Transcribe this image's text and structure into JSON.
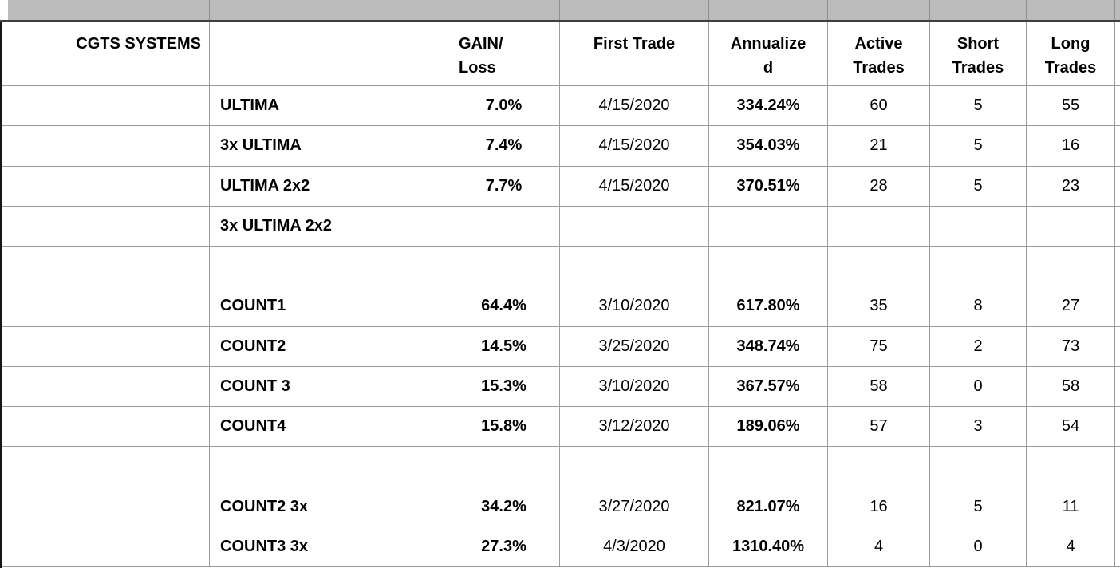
{
  "colors": {
    "grid_line": "#9b9b9b",
    "strip_background": "#bcbcbc",
    "strip_divider": "#8f8f8f",
    "table_top_border": "#3f3f3f",
    "table_left_border": "#161616",
    "text": "#000000",
    "cell_background": "#ffffff"
  },
  "table": {
    "title": "CGTS SYSTEMS",
    "columns": [
      {
        "key": "group",
        "label": "CGTS SYSTEMS",
        "lines": [
          "CGTS SYSTEMS"
        ]
      },
      {
        "key": "name",
        "label": "",
        "lines": [
          ""
        ]
      },
      {
        "key": "gain",
        "label": "GAIN/Loss",
        "lines": [
          "GAIN/",
          "Loss"
        ]
      },
      {
        "key": "first",
        "label": "First Trade",
        "lines": [
          "First Trade"
        ]
      },
      {
        "key": "annual",
        "label": "Annualized",
        "lines": [
          "Annualize",
          "d"
        ]
      },
      {
        "key": "active",
        "label": "Active Trades",
        "lines": [
          "Active",
          "Trades"
        ]
      },
      {
        "key": "short",
        "label": "Short Trades",
        "lines": [
          "Short",
          "Trades"
        ]
      },
      {
        "key": "long",
        "label": "Long Trades",
        "lines": [
          "Long",
          "Trades"
        ]
      }
    ],
    "rows": [
      {
        "group": "",
        "name": "ULTIMA",
        "gain": "7.0%",
        "first": "4/15/2020",
        "annual": "334.24%",
        "active": "60",
        "short": "5",
        "long": "55"
      },
      {
        "group": "",
        "name": "3x ULTIMA",
        "gain": "7.4%",
        "first": "4/15/2020",
        "annual": "354.03%",
        "active": "21",
        "short": "5",
        "long": "16"
      },
      {
        "group": "",
        "name": "ULTIMA 2x2",
        "gain": "7.7%",
        "first": "4/15/2020",
        "annual": "370.51%",
        "active": "28",
        "short": "5",
        "long": "23"
      },
      {
        "group": "",
        "name": "3x ULTIMA 2x2",
        "gain": "",
        "first": "",
        "annual": "",
        "active": "",
        "short": "",
        "long": ""
      },
      {
        "group": "",
        "name": "",
        "gain": "",
        "first": "",
        "annual": "",
        "active": "",
        "short": "",
        "long": ""
      },
      {
        "group": "",
        "name": "COUNT1",
        "gain": "64.4%",
        "first": "3/10/2020",
        "annual": "617.80%",
        "active": "35",
        "short": "8",
        "long": "27"
      },
      {
        "group": "",
        "name": "COUNT2",
        "gain": "14.5%",
        "first": "3/25/2020",
        "annual": "348.74%",
        "active": "75",
        "short": "2",
        "long": "73"
      },
      {
        "group": "",
        "name": "COUNT 3",
        "gain": "15.3%",
        "first": "3/10/2020",
        "annual": "367.57%",
        "active": "58",
        "short": "0",
        "long": "58"
      },
      {
        "group": "",
        "name": "COUNT4",
        "gain": "15.8%",
        "first": "3/12/2020",
        "annual": "189.06%",
        "active": "57",
        "short": "3",
        "long": "54"
      },
      {
        "group": "",
        "name": "",
        "gain": "",
        "first": "",
        "annual": "",
        "active": "",
        "short": "",
        "long": ""
      },
      {
        "group": "",
        "name": "COUNT2 3x",
        "gain": "34.2%",
        "first": "3/27/2020",
        "annual": "821.07%",
        "active": "16",
        "short": "5",
        "long": "11"
      },
      {
        "group": "",
        "name": "COUNT3 3x",
        "gain": "27.3%",
        "first": "4/3/2020",
        "annual": "1310.40%",
        "active": "4",
        "short": "0",
        "long": "4"
      }
    ]
  }
}
